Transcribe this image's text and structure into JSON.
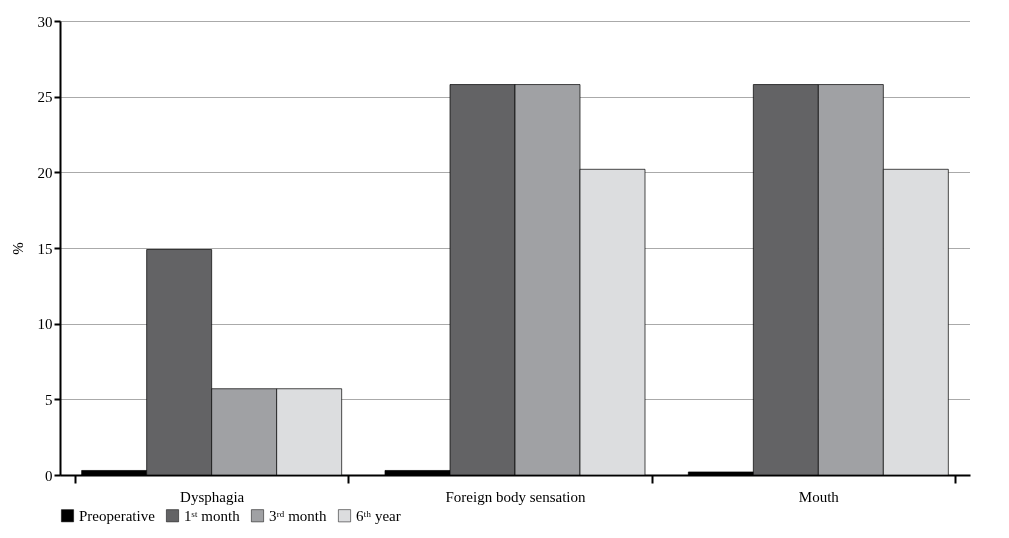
{
  "chart_data": {
    "type": "bar",
    "ylabel": "%",
    "categories": [
      "Dysphagia",
      "Foreign body sensation",
      "Mouth"
    ],
    "series": [
      {
        "name": "Preoperative",
        "color": "#000000",
        "values": [
          0.3,
          0.3,
          0.2
        ]
      },
      {
        "name": "1ˢᵗ month",
        "color": "#636365",
        "values": [
          14.9,
          25.8,
          25.8
        ]
      },
      {
        "name": "3ʳᵈ month",
        "color": "#a0a1a4",
        "values": [
          5.7,
          25.8,
          25.8
        ]
      },
      {
        "name": "6ᵗʰ year",
        "color": "#dcdddf",
        "values": [
          5.7,
          20.2,
          20.2
        ]
      }
    ],
    "ylim": [
      0,
      30
    ],
    "yticks": [
      0,
      5,
      10,
      15,
      20,
      25,
      30
    ],
    "grid": "y",
    "legend": "bottom"
  }
}
